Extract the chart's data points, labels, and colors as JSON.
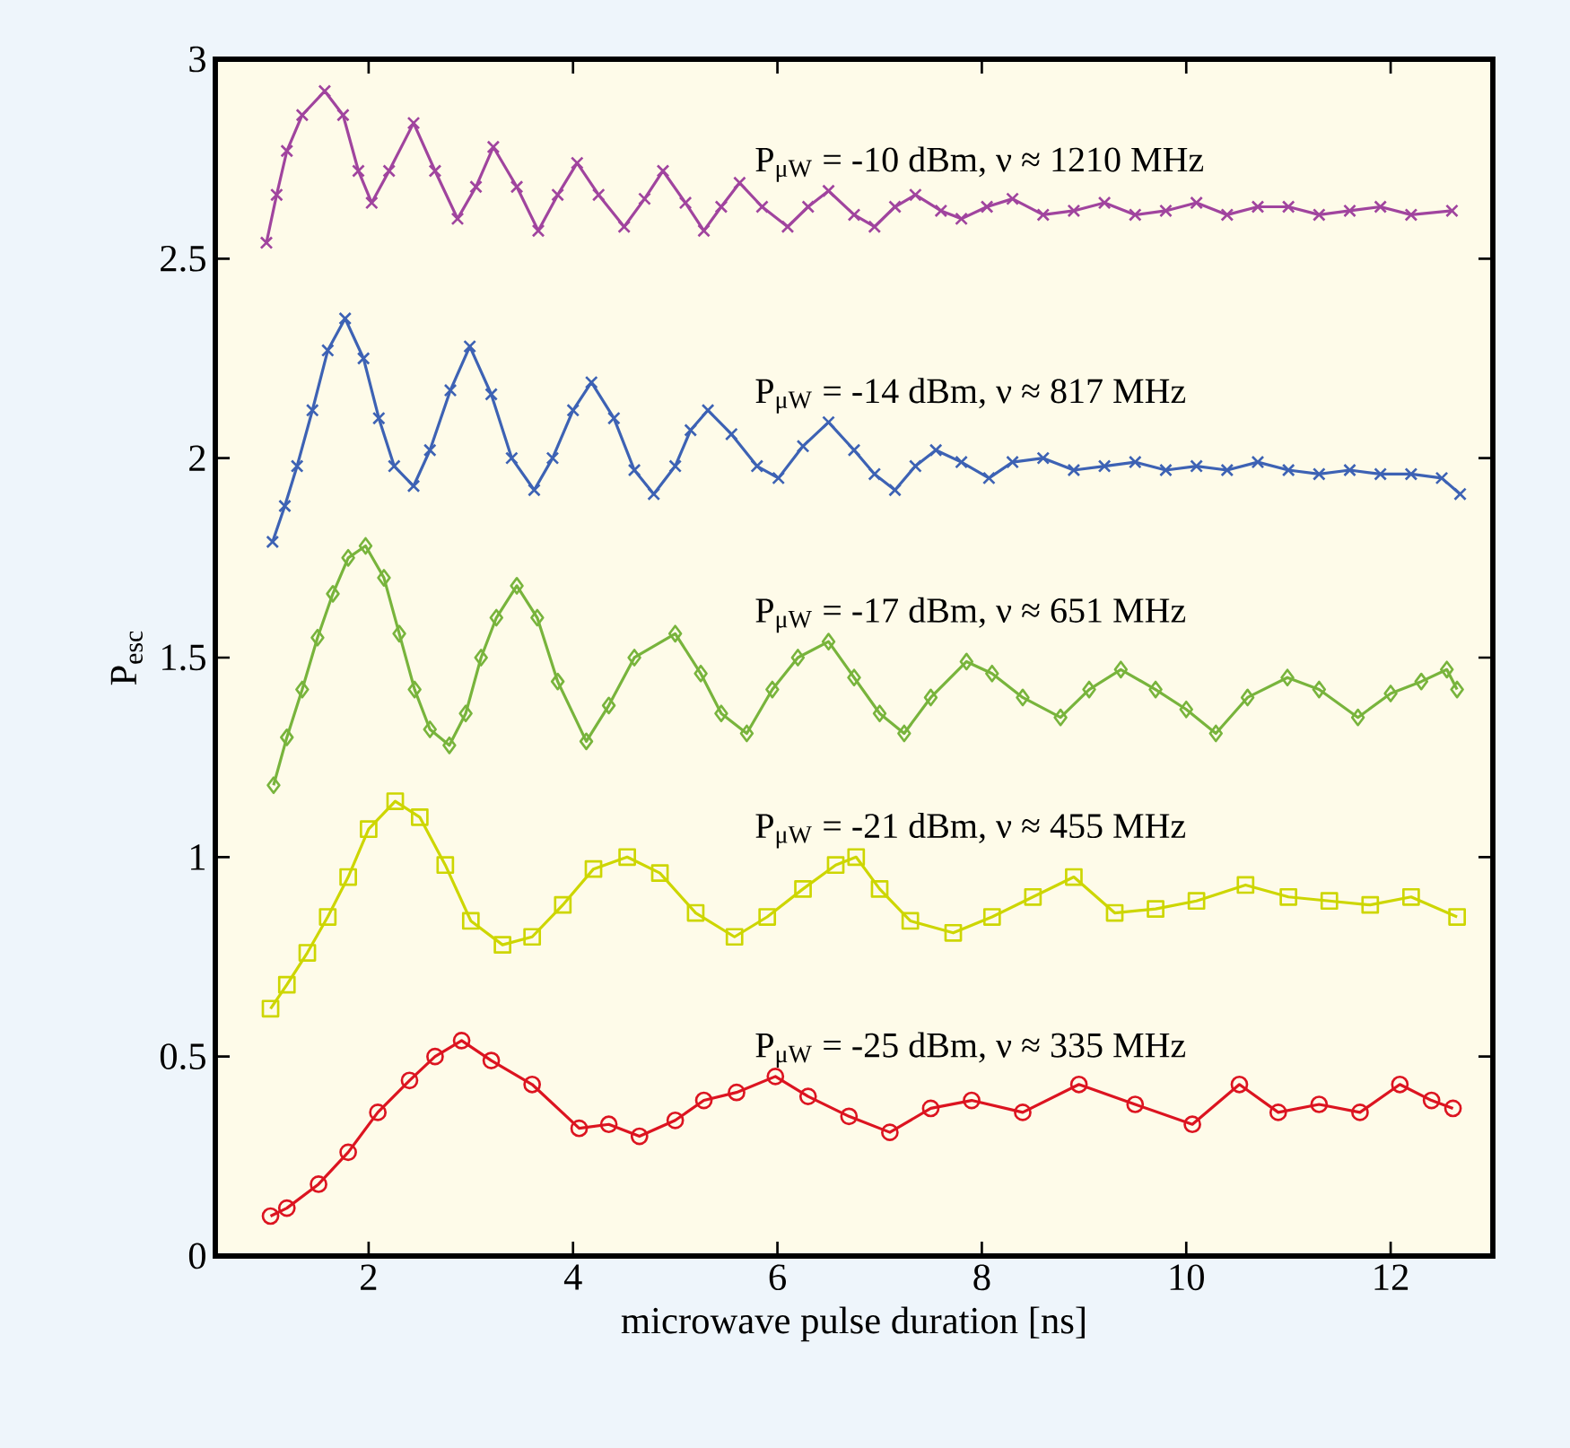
{
  "chart_data": {
    "type": "line",
    "xlabel": "microwave pulse duration [ns]",
    "ylabel": "P$_{esc}$",
    "xlim": [
      0.5,
      13
    ],
    "ylim": [
      0,
      3
    ],
    "xticks": [
      2,
      4,
      6,
      8,
      10,
      12
    ],
    "yticks": [
      0,
      0.5,
      1,
      1.5,
      2,
      2.5,
      3
    ],
    "grid": false,
    "legend": false,
    "series": [
      {
        "name": "P$_{μW}$ = -10 dBm, ν ≈ 1210 MHz",
        "color": "#a0449e",
        "marker": "cross",
        "x": [
          1.0,
          1.1,
          1.2,
          1.35,
          1.57,
          1.75,
          1.9,
          2.03,
          2.2,
          2.44,
          2.65,
          2.87,
          3.05,
          3.22,
          3.45,
          3.66,
          3.85,
          4.04,
          4.25,
          4.5,
          4.7,
          4.88,
          5.1,
          5.28,
          5.45,
          5.63,
          5.85,
          6.1,
          6.3,
          6.5,
          6.75,
          6.95,
          7.15,
          7.35,
          7.6,
          7.8,
          8.05,
          8.3,
          8.6,
          8.9,
          9.2,
          9.5,
          9.8,
          10.1,
          10.4,
          10.7,
          11.0,
          11.3,
          11.6,
          11.9,
          12.2,
          12.6
        ],
        "values": [
          2.54,
          2.66,
          2.77,
          2.86,
          2.92,
          2.86,
          2.72,
          2.64,
          2.72,
          2.84,
          2.72,
          2.6,
          2.68,
          2.78,
          2.68,
          2.57,
          2.66,
          2.74,
          2.66,
          2.58,
          2.65,
          2.72,
          2.64,
          2.57,
          2.63,
          2.69,
          2.63,
          2.58,
          2.63,
          2.67,
          2.61,
          2.58,
          2.63,
          2.66,
          2.62,
          2.6,
          2.63,
          2.65,
          2.61,
          2.62,
          2.64,
          2.61,
          2.62,
          2.64,
          2.61,
          2.63,
          2.63,
          2.61,
          2.62,
          2.63,
          2.61,
          2.62
        ]
      },
      {
        "name": "P$_{μW}$ = -14 dBm, ν ≈ 817 MHz",
        "color": "#3d62b4",
        "marker": "cross",
        "x": [
          1.06,
          1.18,
          1.3,
          1.45,
          1.6,
          1.77,
          1.95,
          2.1,
          2.25,
          2.44,
          2.6,
          2.8,
          2.99,
          3.2,
          3.4,
          3.62,
          3.8,
          4.0,
          4.18,
          4.4,
          4.6,
          4.79,
          5.0,
          5.15,
          5.32,
          5.55,
          5.8,
          6.01,
          6.25,
          6.5,
          6.75,
          6.95,
          7.15,
          7.35,
          7.55,
          7.8,
          8.07,
          8.3,
          8.6,
          8.9,
          9.2,
          9.5,
          9.8,
          10.1,
          10.4,
          10.7,
          11.0,
          11.3,
          11.6,
          11.9,
          12.2,
          12.5,
          12.68
        ],
        "values": [
          1.79,
          1.88,
          1.98,
          2.12,
          2.27,
          2.35,
          2.25,
          2.1,
          1.98,
          1.93,
          2.02,
          2.17,
          2.28,
          2.16,
          2.0,
          1.92,
          2.0,
          2.12,
          2.19,
          2.1,
          1.97,
          1.91,
          1.98,
          2.07,
          2.12,
          2.06,
          1.98,
          1.95,
          2.03,
          2.09,
          2.02,
          1.96,
          1.92,
          1.98,
          2.02,
          1.99,
          1.95,
          1.99,
          2.0,
          1.97,
          1.98,
          1.99,
          1.97,
          1.98,
          1.97,
          1.99,
          1.97,
          1.96,
          1.97,
          1.96,
          1.96,
          1.95,
          1.91
        ]
      },
      {
        "name": "P$_{μW}$ = -17 dBm, ν ≈ 651 MHz",
        "color": "#78b43c",
        "marker": "diamond",
        "x": [
          1.07,
          1.2,
          1.35,
          1.5,
          1.65,
          1.8,
          1.97,
          2.15,
          2.3,
          2.45,
          2.6,
          2.79,
          2.95,
          3.1,
          3.25,
          3.45,
          3.65,
          3.85,
          4.13,
          4.35,
          4.6,
          5.0,
          5.25,
          5.45,
          5.7,
          5.95,
          6.2,
          6.5,
          6.75,
          7.0,
          7.24,
          7.5,
          7.85,
          8.1,
          8.4,
          8.77,
          9.05,
          9.36,
          9.7,
          10.0,
          10.29,
          10.6,
          10.99,
          11.3,
          11.68,
          12.0,
          12.3,
          12.55,
          12.65
        ],
        "values": [
          1.18,
          1.3,
          1.42,
          1.55,
          1.66,
          1.75,
          1.78,
          1.7,
          1.56,
          1.42,
          1.32,
          1.28,
          1.36,
          1.5,
          1.6,
          1.68,
          1.6,
          1.44,
          1.29,
          1.38,
          1.5,
          1.56,
          1.46,
          1.36,
          1.31,
          1.42,
          1.5,
          1.54,
          1.45,
          1.36,
          1.31,
          1.4,
          1.49,
          1.46,
          1.4,
          1.35,
          1.42,
          1.47,
          1.42,
          1.37,
          1.31,
          1.4,
          1.45,
          1.42,
          1.35,
          1.41,
          1.44,
          1.47,
          1.42
        ]
      },
      {
        "name": "P$_{μW}$ = -21 dBm, ν ≈ 455 MHz",
        "color": "#cdd600",
        "marker": "square",
        "x": [
          1.04,
          1.2,
          1.4,
          1.6,
          1.8,
          2.0,
          2.26,
          2.5,
          2.75,
          3.0,
          3.31,
          3.6,
          3.9,
          4.2,
          4.53,
          4.85,
          5.2,
          5.58,
          5.9,
          6.25,
          6.57,
          6.77,
          7.0,
          7.3,
          7.72,
          8.1,
          8.5,
          8.9,
          9.3,
          9.7,
          10.1,
          10.58,
          11.0,
          11.4,
          11.8,
          12.2,
          12.65
        ],
        "values": [
          0.62,
          0.68,
          0.76,
          0.85,
          0.95,
          1.07,
          1.14,
          1.1,
          0.98,
          0.84,
          0.78,
          0.8,
          0.88,
          0.97,
          1.0,
          0.96,
          0.86,
          0.8,
          0.85,
          0.92,
          0.98,
          1.0,
          0.92,
          0.84,
          0.81,
          0.85,
          0.9,
          0.95,
          0.86,
          0.87,
          0.89,
          0.93,
          0.9,
          0.89,
          0.88,
          0.9,
          0.85
        ]
      },
      {
        "name": "P$_{μW}$ = -25 dBm, ν ≈ 335 MHz",
        "color": "#dc1420",
        "marker": "circle",
        "x": [
          1.04,
          1.2,
          1.51,
          1.8,
          2.09,
          2.4,
          2.65,
          2.91,
          3.2,
          3.6,
          4.06,
          4.35,
          4.65,
          5.0,
          5.28,
          5.6,
          5.98,
          6.3,
          6.7,
          7.1,
          7.5,
          7.9,
          8.4,
          8.95,
          9.5,
          10.06,
          10.52,
          10.9,
          11.3,
          11.7,
          12.09,
          12.4,
          12.61
        ],
        "values": [
          0.1,
          0.12,
          0.18,
          0.26,
          0.36,
          0.44,
          0.5,
          0.54,
          0.49,
          0.43,
          0.32,
          0.33,
          0.3,
          0.34,
          0.39,
          0.41,
          0.45,
          0.4,
          0.35,
          0.31,
          0.37,
          0.39,
          0.36,
          0.43,
          0.38,
          0.33,
          0.43,
          0.36,
          0.38,
          0.36,
          0.43,
          0.39,
          0.37
        ]
      }
    ]
  }
}
